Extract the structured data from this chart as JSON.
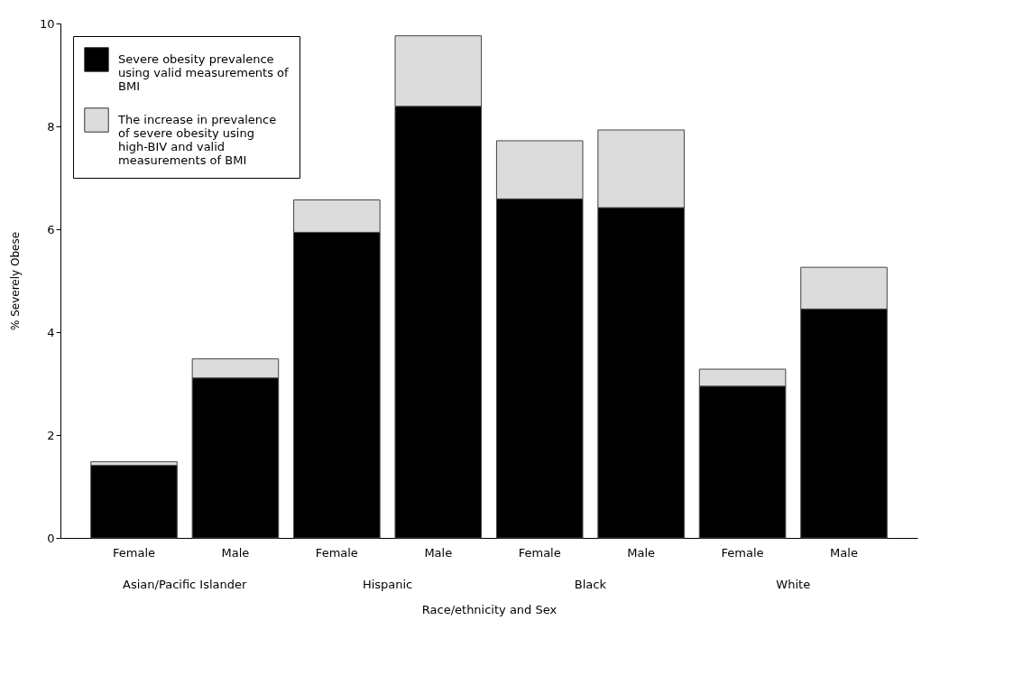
{
  "chart_data": {
    "type": "bar",
    "stacked": true,
    "xlabel": "Race/ethnicity and Sex",
    "ylabel": "% Severely Obese",
    "categories": [
      "Female",
      "Male",
      "Female",
      "Male",
      "Female",
      "Male",
      "Female",
      "Male"
    ],
    "series": [
      {
        "name": "Severe obesity prevalence using valid measurements of BMI",
        "color": "#000000",
        "values": [
          1.41,
          3.11,
          5.94,
          8.39,
          6.59,
          6.42,
          2.95,
          4.45
        ]
      },
      {
        "name": "The increase in prevalence of severe obesity using high-BIV and valid measurements of BMI",
        "color": "#dcdcdc",
        "values": [
          0.07,
          0.37,
          0.63,
          1.37,
          1.13,
          1.51,
          0.33,
          0.81
        ]
      }
    ],
    "annotations": [
      "Asian/Pacific Islander",
      "Hispanic",
      "Black",
      "White"
    ],
    "ylim": [
      0,
      10
    ],
    "yticks": [
      0,
      2,
      4,
      6,
      8,
      10
    ],
    "grid": false,
    "legend": "top left"
  }
}
